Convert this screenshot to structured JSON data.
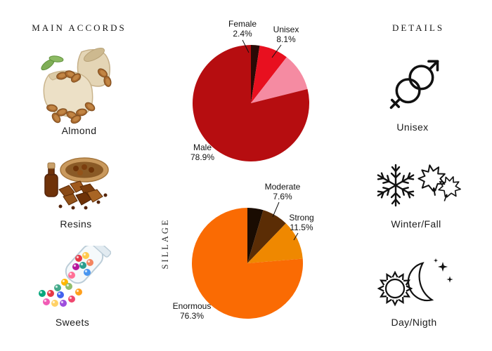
{
  "left_panel": {
    "heading": "MAIN ACCORDS",
    "items": [
      {
        "label": "Almond",
        "icon": "almonds-sack-image"
      },
      {
        "label": "Resins",
        "icon": "resins-pile-image"
      },
      {
        "label": "Sweets",
        "icon": "candy-jar-image"
      }
    ]
  },
  "right_panel": {
    "heading": "DETAILS",
    "items": [
      {
        "label": "Unisex",
        "icon": "gender-unisex-icon"
      },
      {
        "label": "Winter/Fall",
        "icon": "snowflake-maple-leaf-icon"
      },
      {
        "label": "Day/Nigth",
        "icon": "sun-moon-stars-icon"
      }
    ]
  },
  "chart_data": [
    {
      "type": "pie",
      "name": "gender-distribution",
      "start_angle_deg": -90,
      "direction": "clockwise",
      "legend_position": "outside-callouts",
      "slices": [
        {
          "label": "Female",
          "value": 2.4,
          "value_label": "2.4%",
          "color": "#2a0a06"
        },
        {
          "label": "Unisex",
          "value": 8.1,
          "value_label": "8.1%",
          "color": "#e8101f"
        },
        {
          "label": "",
          "value": 10.6,
          "value_label": "",
          "color": "#f58ba2"
        },
        {
          "label": "Male",
          "value": 78.9,
          "value_label": "78.9%",
          "color": "#b60d10"
        }
      ]
    },
    {
      "type": "pie",
      "name": "sillage-distribution",
      "axis_label": "SILLAGE",
      "start_angle_deg": -90,
      "direction": "clockwise",
      "legend_position": "outside-callouts",
      "slices": [
        {
          "label": "",
          "value": 4.6,
          "value_label": "",
          "color": "#1a0c02"
        },
        {
          "label": "Moderate",
          "value": 7.6,
          "value_label": "7.6%",
          "color": "#5b2d05"
        },
        {
          "label": "Strong",
          "value": 11.5,
          "value_label": "11.5%",
          "color": "#ef8800"
        },
        {
          "label": "Enormous",
          "value": 76.3,
          "value_label": "76.3%",
          "color": "#fa6b03"
        }
      ]
    }
  ]
}
